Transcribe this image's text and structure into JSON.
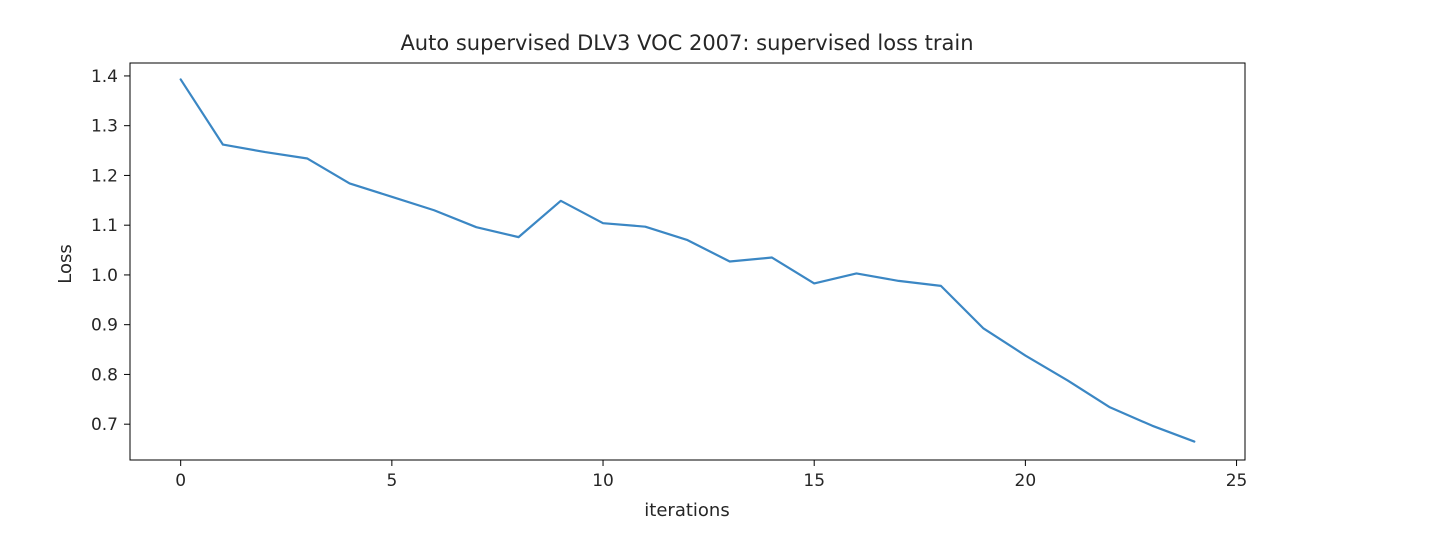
{
  "chart_data": {
    "type": "line",
    "title": "Auto supervised DLV3 VOC 2007: supervised loss train",
    "xlabel": "iterations",
    "ylabel": "Loss",
    "xlim": [
      -1.2,
      25.2
    ],
    "ylim": [
      0.628,
      1.426
    ],
    "x_ticks": [
      0,
      5,
      10,
      15,
      20,
      25
    ],
    "y_ticks": [
      0.7,
      0.8,
      0.9,
      1.0,
      1.1,
      1.2,
      1.3,
      1.4
    ],
    "x_tick_labels": [
      "0",
      "5",
      "10",
      "15",
      "20",
      "25"
    ],
    "y_tick_labels": [
      "0.7",
      "0.8",
      "0.9",
      "1.0",
      "1.1",
      "1.2",
      "1.3",
      "1.4"
    ],
    "grid": false,
    "line_color": "#3b87c4",
    "series": [
      {
        "x": [
          0,
          1,
          2,
          3,
          4,
          5,
          6,
          7,
          8,
          9,
          10,
          11,
          12,
          13,
          14,
          15,
          16,
          17,
          18,
          19,
          20,
          21,
          22,
          23,
          24
        ],
        "values": [
          1.393,
          1.262,
          1.247,
          1.234,
          1.184,
          1.157,
          1.13,
          1.096,
          1.076,
          1.149,
          1.104,
          1.097,
          1.07,
          1.027,
          1.035,
          0.983,
          1.003,
          0.988,
          0.978,
          0.893,
          0.838,
          0.788,
          0.734,
          0.697,
          0.665
        ]
      }
    ]
  }
}
